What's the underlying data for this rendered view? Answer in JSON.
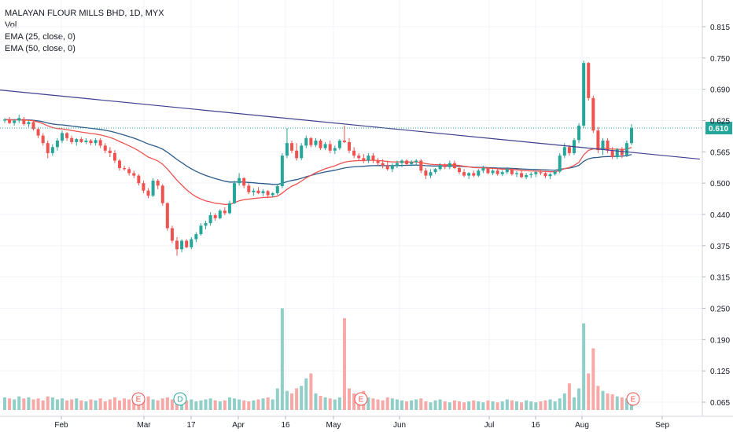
{
  "legend": {
    "title": "MALAYAN FLOUR MILLS BHD, 1D, MYX",
    "vol": "Vol",
    "ema1": "EMA (25, close, 0)",
    "ema2": "EMA (50, close, 0)"
  },
  "colors": {
    "up": "#26a69a",
    "down": "#ef5350",
    "vol_up": "#8fcfc8",
    "vol_down": "#f7a9a7",
    "ema25": "#ef5350",
    "ema50": "#2c5c8a",
    "trendline": "#3f3f8f",
    "last_price": "#26a69a"
  },
  "chart_data": {
    "type": "candlestick",
    "symbol": "MALAYAN FLOUR MILLS BHD",
    "interval": "1D",
    "exchange": "MYX",
    "y_ticks": [
      "0.815",
      "0.750",
      "0.690",
      "0.625",
      "0.565",
      "0.500",
      "0.440",
      "0.375",
      "0.315",
      "0.250",
      "0.190",
      "0.125",
      "0.065"
    ],
    "x_ticks": [
      "Feb",
      "Mar",
      "17",
      "Apr",
      "16",
      "May",
      "Jun",
      "Jul",
      "16",
      "Aug",
      "Sep"
    ],
    "last_price": "0.610",
    "events": [
      {
        "label": "E",
        "type": "earnings"
      },
      {
        "label": "D",
        "type": "dividend"
      },
      {
        "label": "E",
        "type": "earnings"
      },
      {
        "label": "E",
        "type": "earnings"
      }
    ],
    "trendline": {
      "from": [
        0,
        0.686
      ],
      "to": [
        133,
        0.548
      ]
    },
    "candles": [
      [
        0.625,
        0.63,
        0.62,
        0.627
      ],
      [
        0.627,
        0.632,
        0.618,
        0.62
      ],
      [
        0.62,
        0.628,
        0.615,
        0.625
      ],
      [
        0.625,
        0.637,
        0.62,
        0.63
      ],
      [
        0.628,
        0.632,
        0.615,
        0.618
      ],
      [
        0.618,
        0.625,
        0.612,
        0.622
      ],
      [
        0.622,
        0.626,
        0.605,
        0.608
      ],
      [
        0.608,
        0.612,
        0.59,
        0.595
      ],
      [
        0.595,
        0.6,
        0.575,
        0.58
      ],
      [
        0.58,
        0.585,
        0.55,
        0.56
      ],
      [
        0.56,
        0.578,
        0.555,
        0.572
      ],
      [
        0.572,
        0.59,
        0.565,
        0.585
      ],
      [
        0.585,
        0.605,
        0.58,
        0.6
      ],
      [
        0.6,
        0.602,
        0.585,
        0.59
      ],
      [
        0.59,
        0.595,
        0.578,
        0.582
      ],
      [
        0.582,
        0.59,
        0.575,
        0.588
      ],
      [
        0.588,
        0.592,
        0.58,
        0.582
      ],
      [
        0.582,
        0.59,
        0.578,
        0.585
      ],
      [
        0.585,
        0.588,
        0.576,
        0.58
      ],
      [
        0.58,
        0.59,
        0.575,
        0.586
      ],
      [
        0.586,
        0.59,
        0.57,
        0.575
      ],
      [
        0.575,
        0.58,
        0.56,
        0.565
      ],
      [
        0.565,
        0.572,
        0.552,
        0.56
      ],
      [
        0.56,
        0.566,
        0.54,
        0.545
      ],
      [
        0.545,
        0.548,
        0.525,
        0.53
      ],
      [
        0.53,
        0.535,
        0.525,
        0.528
      ],
      [
        0.528,
        0.532,
        0.515,
        0.52
      ],
      [
        0.52,
        0.525,
        0.51,
        0.515
      ],
      [
        0.515,
        0.518,
        0.495,
        0.5
      ],
      [
        0.5,
        0.505,
        0.48,
        0.485
      ],
      [
        0.485,
        0.49,
        0.47,
        0.475
      ],
      [
        0.475,
        0.51,
        0.472,
        0.505
      ],
      [
        0.505,
        0.508,
        0.488,
        0.495
      ],
      [
        0.495,
        0.498,
        0.455,
        0.46
      ],
      [
        0.46,
        0.462,
        0.405,
        0.41
      ],
      [
        0.41,
        0.415,
        0.38,
        0.385
      ],
      [
        0.385,
        0.392,
        0.355,
        0.368
      ],
      [
        0.368,
        0.388,
        0.362,
        0.385
      ],
      [
        0.385,
        0.388,
        0.37,
        0.372
      ],
      [
        0.372,
        0.392,
        0.368,
        0.388
      ],
      [
        0.388,
        0.402,
        0.382,
        0.398
      ],
      [
        0.398,
        0.42,
        0.395,
        0.415
      ],
      [
        0.415,
        0.425,
        0.408,
        0.42
      ],
      [
        0.42,
        0.442,
        0.415,
        0.436
      ],
      [
        0.436,
        0.44,
        0.425,
        0.43
      ],
      [
        0.43,
        0.448,
        0.428,
        0.445
      ],
      [
        0.445,
        0.452,
        0.436,
        0.44
      ],
      [
        0.44,
        0.465,
        0.438,
        0.46
      ],
      [
        0.46,
        0.505,
        0.458,
        0.5
      ],
      [
        0.5,
        0.52,
        0.495,
        0.51
      ],
      [
        0.51,
        0.512,
        0.49,
        0.495
      ],
      [
        0.495,
        0.5,
        0.478,
        0.482
      ],
      [
        0.482,
        0.49,
        0.475,
        0.485
      ],
      [
        0.485,
        0.492,
        0.478,
        0.48
      ],
      [
        0.48,
        0.488,
        0.474,
        0.484
      ],
      [
        0.484,
        0.486,
        0.47,
        0.476
      ],
      [
        0.476,
        0.482,
        0.472,
        0.48
      ],
      [
        0.48,
        0.498,
        0.476,
        0.494
      ],
      [
        0.494,
        0.56,
        0.49,
        0.555
      ],
      [
        0.555,
        0.61,
        0.55,
        0.58
      ],
      [
        0.58,
        0.585,
        0.56,
        0.565
      ],
      [
        0.565,
        0.58,
        0.545,
        0.55
      ],
      [
        0.55,
        0.58,
        0.546,
        0.575
      ],
      [
        0.575,
        0.595,
        0.57,
        0.59
      ],
      [
        0.59,
        0.592,
        0.572,
        0.576
      ],
      [
        0.576,
        0.59,
        0.572,
        0.585
      ],
      [
        0.585,
        0.588,
        0.566,
        0.57
      ],
      [
        0.57,
        0.582,
        0.566,
        0.578
      ],
      [
        0.578,
        0.585,
        0.56,
        0.565
      ],
      [
        0.565,
        0.575,
        0.558,
        0.57
      ],
      [
        0.57,
        0.588,
        0.566,
        0.585
      ],
      [
        0.585,
        0.615,
        0.58,
        0.582
      ],
      [
        0.582,
        0.59,
        0.56,
        0.565
      ],
      [
        0.565,
        0.572,
        0.55,
        0.555
      ],
      [
        0.555,
        0.56,
        0.546,
        0.55
      ],
      [
        0.55,
        0.558,
        0.54,
        0.545
      ],
      [
        0.545,
        0.56,
        0.54,
        0.555
      ],
      [
        0.555,
        0.56,
        0.54,
        0.545
      ],
      [
        0.545,
        0.55,
        0.535,
        0.54
      ],
      [
        0.54,
        0.548,
        0.53,
        0.535
      ],
      [
        0.535,
        0.545,
        0.525,
        0.528
      ],
      [
        0.528,
        0.54,
        0.522,
        0.535
      ],
      [
        0.535,
        0.545,
        0.53,
        0.54
      ],
      [
        0.54,
        0.548,
        0.532,
        0.545
      ],
      [
        0.545,
        0.548,
        0.535,
        0.538
      ],
      [
        0.538,
        0.546,
        0.534,
        0.542
      ],
      [
        0.542,
        0.548,
        0.535,
        0.545
      ],
      [
        0.545,
        0.548,
        0.52,
        0.525
      ],
      [
        0.525,
        0.53,
        0.508,
        0.515
      ],
      [
        0.515,
        0.528,
        0.51,
        0.522
      ],
      [
        0.522,
        0.53,
        0.518,
        0.528
      ],
      [
        0.528,
        0.54,
        0.525,
        0.536
      ],
      [
        0.536,
        0.54,
        0.528,
        0.532
      ],
      [
        0.532,
        0.545,
        0.528,
        0.54
      ],
      [
        0.54,
        0.545,
        0.528,
        0.53
      ],
      [
        0.53,
        0.535,
        0.518,
        0.522
      ],
      [
        0.522,
        0.528,
        0.512,
        0.515
      ],
      [
        0.515,
        0.522,
        0.508,
        0.52
      ],
      [
        0.52,
        0.525,
        0.512,
        0.515
      ],
      [
        0.515,
        0.528,
        0.512,
        0.525
      ],
      [
        0.525,
        0.535,
        0.52,
        0.53
      ],
      [
        0.53,
        0.532,
        0.518,
        0.52
      ],
      [
        0.52,
        0.528,
        0.516,
        0.525
      ],
      [
        0.525,
        0.53,
        0.515,
        0.518
      ],
      [
        0.518,
        0.526,
        0.514,
        0.522
      ],
      [
        0.522,
        0.532,
        0.518,
        0.528
      ],
      [
        0.528,
        0.53,
        0.515,
        0.518
      ],
      [
        0.518,
        0.524,
        0.512,
        0.52
      ],
      [
        0.52,
        0.525,
        0.51,
        0.512
      ],
      [
        0.512,
        0.52,
        0.508,
        0.516
      ],
      [
        0.516,
        0.522,
        0.51,
        0.518
      ],
      [
        0.518,
        0.525,
        0.512,
        0.522
      ],
      [
        0.522,
        0.528,
        0.516,
        0.52
      ],
      [
        0.52,
        0.524,
        0.51,
        0.514
      ],
      [
        0.514,
        0.52,
        0.508,
        0.518
      ],
      [
        0.518,
        0.526,
        0.515,
        0.523
      ],
      [
        0.523,
        0.56,
        0.52,
        0.555
      ],
      [
        0.555,
        0.58,
        0.55,
        0.572
      ],
      [
        0.572,
        0.576,
        0.555,
        0.56
      ],
      [
        0.56,
        0.59,
        0.556,
        0.586
      ],
      [
        0.586,
        0.62,
        0.58,
        0.615
      ],
      [
        0.615,
        0.745,
        0.61,
        0.74
      ],
      [
        0.74,
        0.742,
        0.665,
        0.67
      ],
      [
        0.67,
        0.675,
        0.6,
        0.605
      ],
      [
        0.605,
        0.612,
        0.56,
        0.566
      ],
      [
        0.566,
        0.59,
        0.556,
        0.585
      ],
      [
        0.585,
        0.59,
        0.56,
        0.565
      ],
      [
        0.565,
        0.572,
        0.548,
        0.552
      ],
      [
        0.552,
        0.57,
        0.548,
        0.568
      ],
      [
        0.568,
        0.572,
        0.55,
        0.556
      ],
      [
        0.556,
        0.585,
        0.552,
        0.58
      ],
      [
        0.58,
        0.618,
        0.576,
        0.61
      ]
    ],
    "volume": [
      0.072,
      0.07,
      0.068,
      0.074,
      0.07,
      0.072,
      0.068,
      0.07,
      0.066,
      0.074,
      0.072,
      0.068,
      0.07,
      0.066,
      0.068,
      0.07,
      0.066,
      0.064,
      0.068,
      0.066,
      0.07,
      0.064,
      0.068,
      0.072,
      0.066,
      0.07,
      0.068,
      0.064,
      0.066,
      0.07,
      0.074,
      0.068,
      0.066,
      0.07,
      0.072,
      0.068,
      0.074,
      0.07,
      0.066,
      0.068,
      0.064,
      0.066,
      0.068,
      0.07,
      0.066,
      0.064,
      0.066,
      0.072,
      0.07,
      0.068,
      0.066,
      0.064,
      0.066,
      0.068,
      0.07,
      0.072,
      0.068,
      0.09,
      0.25,
      0.085,
      0.08,
      0.09,
      0.095,
      0.11,
      0.12,
      0.08,
      0.075,
      0.072,
      0.07,
      0.068,
      0.072,
      0.23,
      0.09,
      0.08,
      0.078,
      0.085,
      0.072,
      0.07,
      0.068,
      0.066,
      0.072,
      0.07,
      0.068,
      0.066,
      0.064,
      0.066,
      0.068,
      0.07,
      0.064,
      0.062,
      0.066,
      0.068,
      0.064,
      0.062,
      0.066,
      0.064,
      0.062,
      0.064,
      0.066,
      0.064,
      0.062,
      0.066,
      0.064,
      0.062,
      0.064,
      0.068,
      0.066,
      0.064,
      0.062,
      0.066,
      0.064,
      0.062,
      0.064,
      0.066,
      0.068,
      0.064,
      0.07,
      0.08,
      0.1,
      0.072,
      0.09,
      0.22,
      0.12,
      0.17,
      0.095,
      0.085,
      0.08,
      0.078,
      0.074,
      0.072,
      0.07,
      0.072
    ]
  }
}
